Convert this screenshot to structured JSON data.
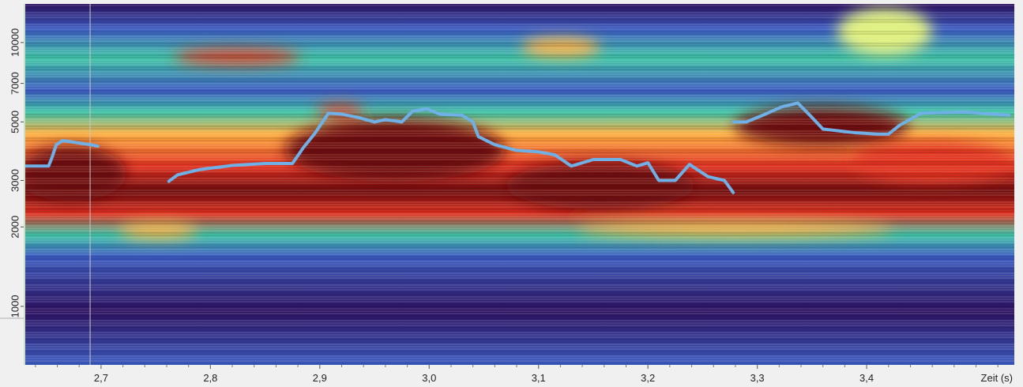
{
  "chart_data": {
    "type": "heatmap",
    "title": "",
    "xlabel": "Zeit (s)",
    "ylabel": "",
    "x_range": [
      2.63,
      3.535
    ],
    "x_ticks": [
      {
        "value": 2.7,
        "label": "2,7"
      },
      {
        "value": 2.8,
        "label": "2,8"
      },
      {
        "value": 2.9,
        "label": "2,9"
      },
      {
        "value": 3.0,
        "label": "3,0"
      },
      {
        "value": 3.1,
        "label": "3,1"
      },
      {
        "value": 3.2,
        "label": "3,2"
      },
      {
        "value": 3.3,
        "label": "3,3"
      },
      {
        "value": 3.4,
        "label": "3,4"
      }
    ],
    "y_scale": "log",
    "y_range": [
      600,
      14000
    ],
    "y_ticks": [
      {
        "value": 1000,
        "label": "1000"
      },
      {
        "value": 2000,
        "label": "2000"
      },
      {
        "value": 3000,
        "label": "3000"
      },
      {
        "value": 5000,
        "label": "5000"
      },
      {
        "value": 7000,
        "label": "7000"
      },
      {
        "value": 10000,
        "label": "10000"
      }
    ],
    "colormap": [
      "#2d1160",
      "#3b5bbf",
      "#3fc4a6",
      "#dff07c",
      "#ffb040",
      "#e0301e",
      "#6e0a0a"
    ],
    "cursor_time": 2.69,
    "series": [
      {
        "color": "#6fb0e6",
        "segments": [
          [
            [
              2.63,
              3400
            ],
            [
              2.652,
              3400
            ],
            [
              2.655,
              3650
            ],
            [
              2.659,
              4100
            ],
            [
              2.665,
              4250
            ],
            [
              2.69,
              4100
            ],
            [
              2.697,
              4050
            ]
          ],
          [
            [
              2.762,
              2980
            ],
            [
              2.77,
              3150
            ],
            [
              2.79,
              3300
            ],
            [
              2.82,
              3420
            ],
            [
              2.85,
              3480
            ],
            [
              2.875,
              3480
            ],
            [
              2.885,
              4000
            ],
            [
              2.895,
              4500
            ],
            [
              2.908,
              5400
            ],
            [
              2.92,
              5350
            ],
            [
              2.935,
              5200
            ],
            [
              2.95,
              5000
            ],
            [
              2.96,
              5100
            ],
            [
              2.975,
              5000
            ],
            [
              2.985,
              5500
            ],
            [
              2.998,
              5600
            ],
            [
              3.01,
              5350
            ],
            [
              3.03,
              5300
            ],
            [
              3.04,
              5000
            ],
            [
              3.045,
              4400
            ],
            [
              3.06,
              4100
            ],
            [
              3.08,
              3900
            ],
            [
              3.1,
              3850
            ],
            [
              3.115,
              3750
            ],
            [
              3.13,
              3400
            ],
            [
              3.15,
              3600
            ],
            [
              3.175,
              3600
            ],
            [
              3.19,
              3400
            ],
            [
              3.2,
              3500
            ],
            [
              3.21,
              3000
            ],
            [
              3.225,
              3000
            ],
            [
              3.238,
              3450
            ],
            [
              3.255,
              3100
            ],
            [
              3.27,
              3000
            ],
            [
              3.278,
              2700
            ]
          ],
          [
            [
              3.278,
              5000
            ],
            [
              3.29,
              5000
            ],
            [
              3.305,
              5300
            ],
            [
              3.322,
              5700
            ],
            [
              3.337,
              5900
            ],
            [
              3.35,
              5200
            ],
            [
              3.36,
              4700
            ],
            [
              3.39,
              4550
            ],
            [
              3.41,
              4500
            ],
            [
              3.42,
              4500
            ],
            [
              3.43,
              4850
            ],
            [
              3.45,
              5400
            ],
            [
              3.49,
              5450
            ],
            [
              3.53,
              5300
            ]
          ]
        ]
      }
    ]
  }
}
